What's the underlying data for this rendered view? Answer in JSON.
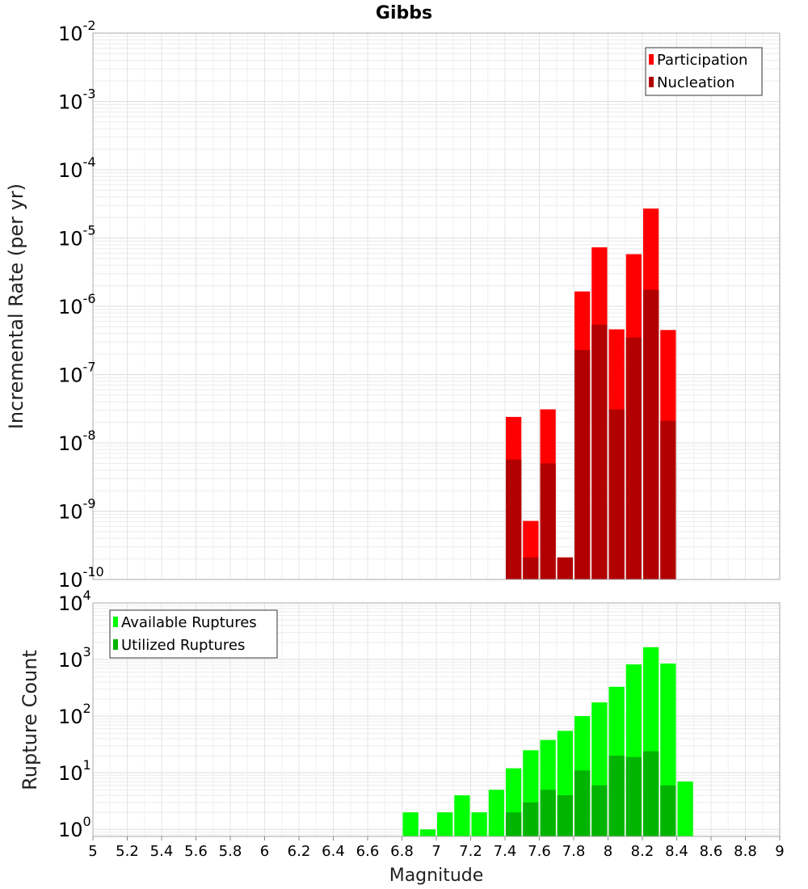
{
  "chart_data": [
    {
      "type": "bar",
      "title": "Gibbs",
      "ylabel": "Incremental Rate (per yr)",
      "xlabel": "",
      "yscale": "log",
      "ylim": [
        1e-10,
        0.01
      ],
      "xlim": [
        5,
        9
      ],
      "y_tick_exponents": [
        -10,
        -9,
        -8,
        -7,
        -6,
        -5,
        -4,
        -3,
        -2
      ],
      "bar_width": 0.1,
      "grid": true,
      "legend_position": "top-right",
      "series": [
        {
          "name": "Participation",
          "color": "#ff0000",
          "x": [
            7.45,
            7.55,
            7.65,
            7.75,
            7.85,
            7.95,
            8.05,
            8.15,
            8.25,
            8.35
          ],
          "values": [
            2.4e-08,
            7.2e-10,
            3.1e-08,
            2.1e-10,
            1.65e-06,
            7.3e-06,
            4.6e-07,
            5.8e-06,
            2.7e-05,
            4.5e-07
          ]
        },
        {
          "name": "Nucleation",
          "color": "#b20000",
          "x": [
            7.45,
            7.55,
            7.65,
            7.75,
            7.85,
            7.95,
            8.05,
            8.15,
            8.25,
            8.35
          ],
          "values": [
            5.7e-09,
            2.1e-10,
            5e-09,
            2.1e-10,
            2.3e-07,
            5.4e-07,
            3.1e-08,
            3.5e-07,
            1.75e-06,
            2.1e-08
          ]
        }
      ]
    },
    {
      "type": "bar",
      "title": "",
      "ylabel": "Rupture Count",
      "xlabel": "Magnitude",
      "yscale": "log",
      "ylim": [
        0.75,
        10000
      ],
      "xlim": [
        5,
        9
      ],
      "y_tick_exponents": [
        0,
        1,
        2,
        3,
        4
      ],
      "x_ticks": [
        "5",
        "5.2",
        "5.4",
        "5.6",
        "5.8",
        "6",
        "6.2",
        "6.4",
        "6.6",
        "6.8",
        "7",
        "7.2",
        "7.4",
        "7.6",
        "7.8",
        "8",
        "8.2",
        "8.4",
        "8.6",
        "8.8",
        "9"
      ],
      "bar_width": 0.1,
      "grid": true,
      "legend_position": "top-left",
      "series": [
        {
          "name": "Available Ruptures",
          "color": "#00ff00",
          "x": [
            6.85,
            6.95,
            7.05,
            7.15,
            7.25,
            7.35,
            7.45,
            7.55,
            7.65,
            7.75,
            7.85,
            7.95,
            8.05,
            8.15,
            8.25,
            8.35,
            8.45
          ],
          "values": [
            2,
            1,
            2,
            4,
            2,
            5,
            12,
            25,
            38,
            55,
            100,
            175,
            330,
            820,
            1650,
            850,
            7
          ]
        },
        {
          "name": "Utilized Ruptures",
          "color": "#00b400",
          "x": [
            7.45,
            7.55,
            7.65,
            7.75,
            7.85,
            7.95,
            8.05,
            8.15,
            8.25,
            8.35
          ],
          "values": [
            2,
            3,
            5,
            4,
            11,
            6,
            20,
            19,
            24,
            6
          ]
        }
      ]
    }
  ]
}
